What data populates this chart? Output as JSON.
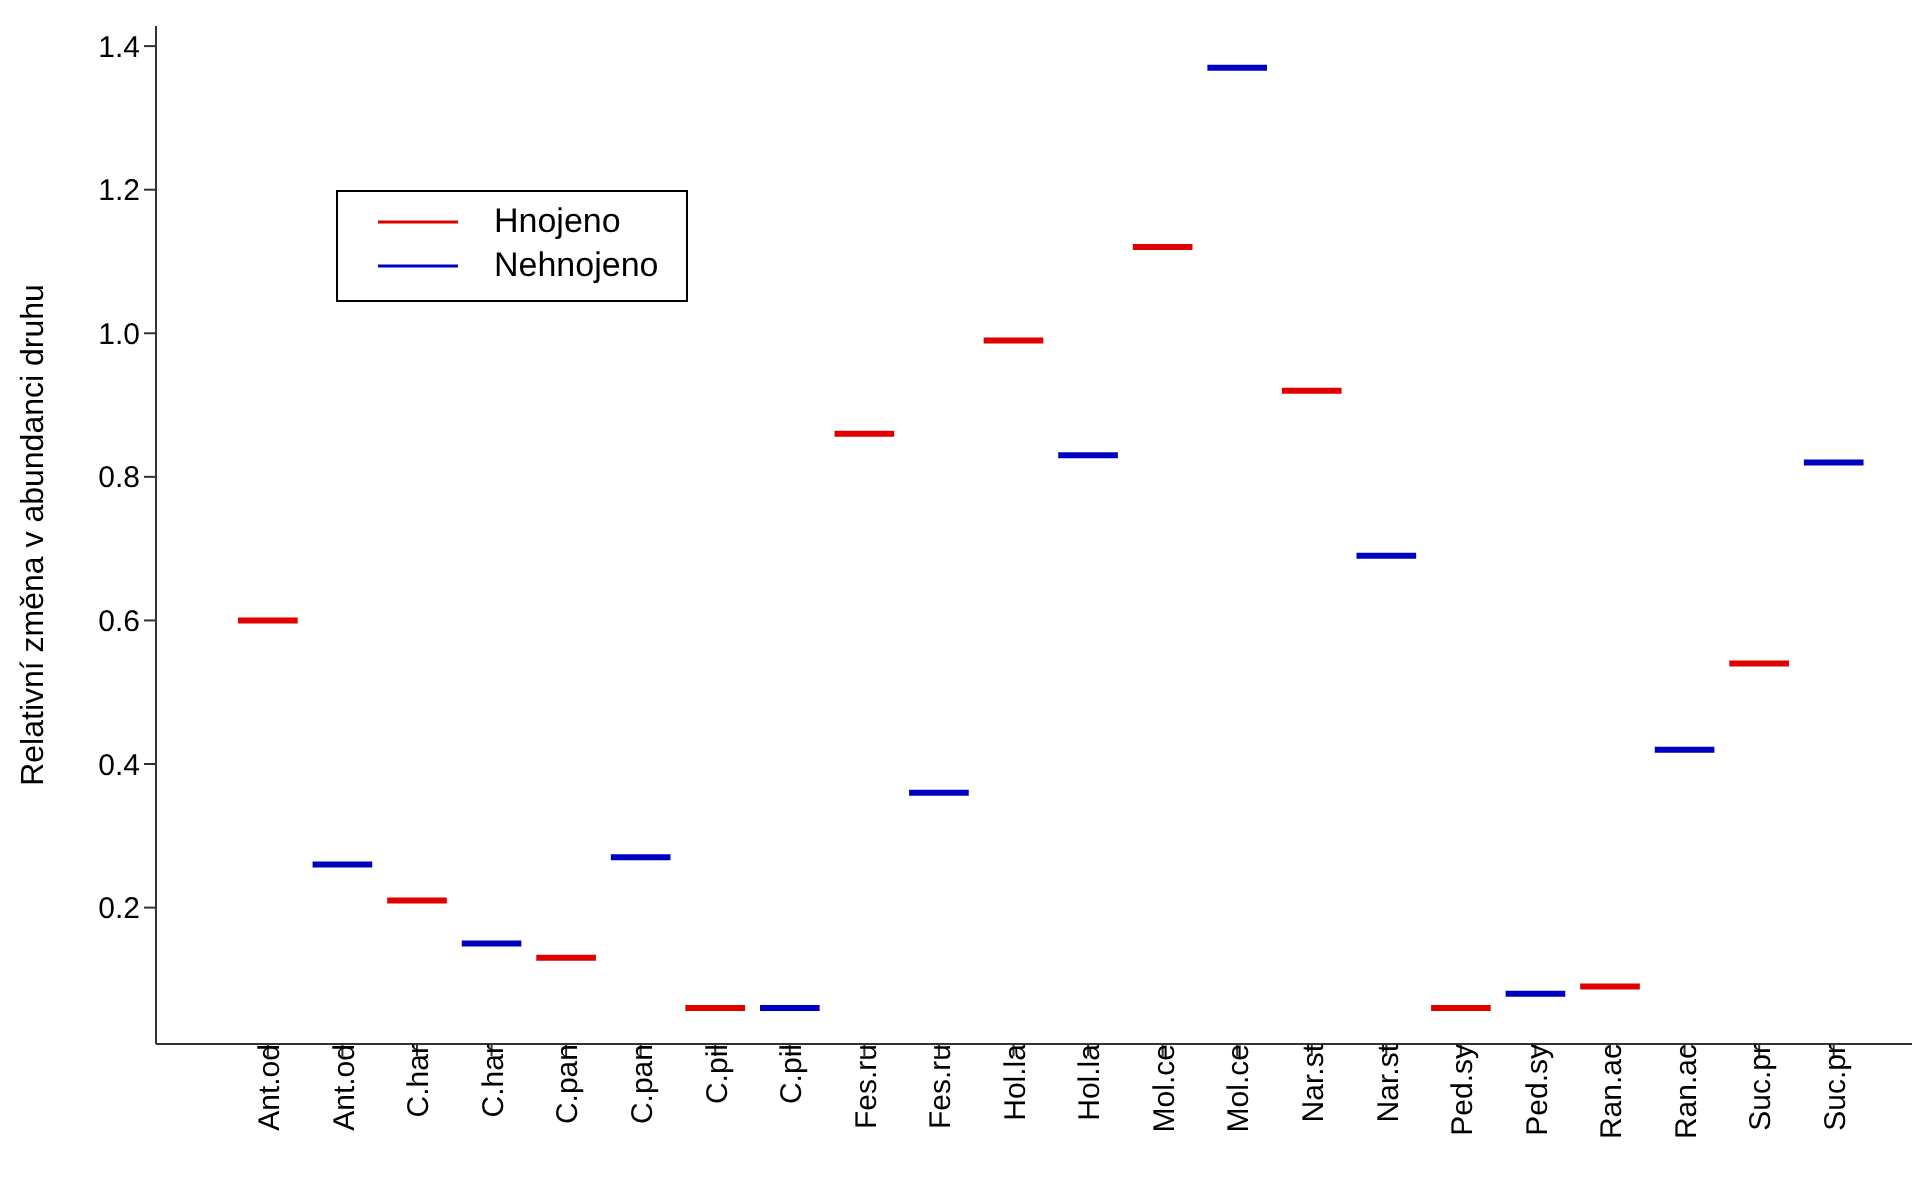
{
  "chart_data": {
    "type": "box",
    "ylabel": "Relativní změna v abundanci druhu",
    "categories": [
      "Ant.od",
      "Ant.od",
      "C.har",
      "C.har",
      "C.pan",
      "C.pan",
      "C.pil",
      "C.pil",
      "Fes.ru",
      "Fes.ru",
      "Hol.la",
      "Hol.la",
      "Mol.ce",
      "Mol.ce",
      "Nar.st",
      "Nar.st",
      "Ped.sy",
      "Ped.sy",
      "Ran.ac",
      "Ran.ac",
      "Suc.pr",
      "Suc.pr"
    ],
    "series": [
      {
        "name": "Hnojeno",
        "color": "#e00000",
        "boxes": [
          {
            "low": 0.6,
            "q1": 0.6,
            "median": 0.6,
            "q3": 0.6,
            "high": 0.6
          },
          null,
          {
            "low": 0.21,
            "q1": 0.21,
            "median": 0.21,
            "q3": 0.21,
            "high": 0.21
          },
          null,
          {
            "low": 0.13,
            "q1": 0.13,
            "median": 0.13,
            "q3": 0.13,
            "high": 0.13
          },
          null,
          {
            "low": 0.06,
            "q1": 0.06,
            "median": 0.06,
            "q3": 0.06,
            "high": 0.06
          },
          null,
          {
            "low": 0.86,
            "q1": 0.86,
            "median": 0.86,
            "q3": 0.86,
            "high": 0.86
          },
          null,
          {
            "low": 0.99,
            "q1": 0.99,
            "median": 0.99,
            "q3": 0.99,
            "high": 0.99
          },
          null,
          {
            "low": 1.12,
            "q1": 1.12,
            "median": 1.12,
            "q3": 1.12,
            "high": 1.12
          },
          null,
          {
            "low": 0.92,
            "q1": 0.92,
            "median": 0.92,
            "q3": 0.92,
            "high": 0.92
          },
          null,
          {
            "low": 0.06,
            "q1": 0.06,
            "median": 0.06,
            "q3": 0.06,
            "high": 0.06
          },
          null,
          {
            "low": 0.09,
            "q1": 0.09,
            "median": 0.09,
            "q3": 0.09,
            "high": 0.09
          },
          null,
          {
            "low": 0.54,
            "q1": 0.54,
            "median": 0.54,
            "q3": 0.54,
            "high": 0.54
          },
          null
        ]
      },
      {
        "name": "Nehnojeno",
        "color": "#0000c0",
        "boxes": [
          null,
          {
            "low": 0.26,
            "q1": 0.26,
            "median": 0.26,
            "q3": 0.26,
            "high": 0.26
          },
          null,
          {
            "low": 0.15,
            "q1": 0.15,
            "median": 0.15,
            "q3": 0.15,
            "high": 0.15
          },
          null,
          {
            "low": 0.27,
            "q1": 0.27,
            "median": 0.27,
            "q3": 0.27,
            "high": 0.27
          },
          null,
          {
            "low": 0.06,
            "q1": 0.06,
            "median": 0.06,
            "q3": 0.06,
            "high": 0.06
          },
          null,
          {
            "low": 0.36,
            "q1": 0.36,
            "median": 0.36,
            "q3": 0.36,
            "high": 0.36
          },
          null,
          {
            "low": 0.83,
            "q1": 0.83,
            "median": 0.83,
            "q3": 0.83,
            "high": 0.83
          },
          null,
          {
            "low": 1.37,
            "q1": 1.37,
            "median": 1.37,
            "q3": 1.37,
            "high": 1.37
          },
          null,
          {
            "low": 0.69,
            "q1": 0.69,
            "median": 0.69,
            "q3": 0.69,
            "high": 0.69
          },
          null,
          {
            "low": 0.08,
            "q1": 0.08,
            "median": 0.08,
            "q3": 0.08,
            "high": 0.08
          },
          null,
          {
            "low": 0.42,
            "q1": 0.42,
            "median": 0.42,
            "q3": 0.42,
            "high": 0.42
          },
          null,
          {
            "low": 0.82,
            "q1": 0.82,
            "median": 0.82,
            "q3": 0.82,
            "high": 0.82
          }
        ]
      }
    ],
    "ylim": [
      0.01,
      1.428
    ],
    "yticks": [
      {
        "value": 0.2,
        "label": "0.2"
      },
      {
        "value": 0.4,
        "label": "0.4"
      },
      {
        "value": 0.6,
        "label": "0.6"
      },
      {
        "value": 0.8,
        "label": "0.8"
      },
      {
        "value": 1.0,
        "label": "1.0"
      },
      {
        "value": 1.2,
        "label": "1.2"
      },
      {
        "value": 1.4,
        "label": "1.4"
      }
    ],
    "legend": "top left"
  }
}
